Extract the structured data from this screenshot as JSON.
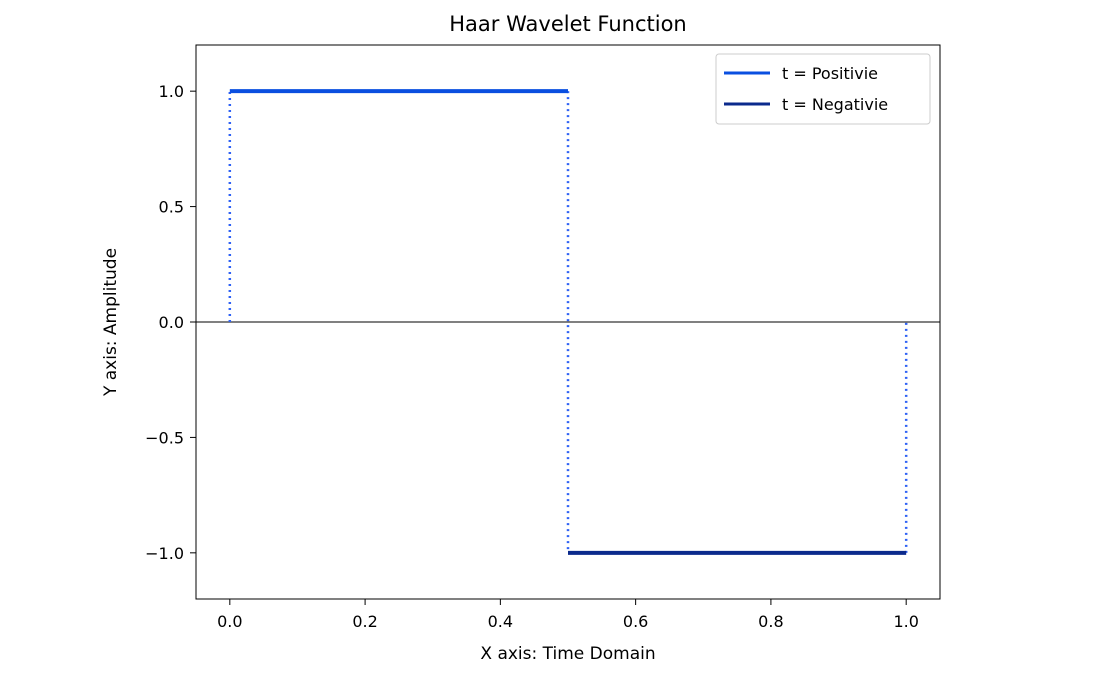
{
  "chart_data": {
    "type": "line",
    "title": "Haar Wavelet Function",
    "xlabel": "X axis: Time Domain",
    "ylabel": "Y axis: Amplitude",
    "xlim": [
      -0.05,
      1.05
    ],
    "ylim": [
      -1.2,
      1.2
    ],
    "x_ticks": [
      0.0,
      0.2,
      0.4,
      0.6,
      0.8,
      1.0
    ],
    "x_tick_labels": [
      "0.0",
      "0.2",
      "0.4",
      "0.6",
      "0.8",
      "1.0"
    ],
    "y_ticks": [
      1.0,
      0.5,
      0.0,
      -0.5,
      -1.0
    ],
    "y_tick_labels": [
      "1.0",
      "0.5",
      "0.0",
      "−0.5",
      "−1.0"
    ],
    "grid": false,
    "legend_position": "top-right",
    "zero_line": true,
    "series": [
      {
        "name": "t = Positivie",
        "color": "#0a4fe0",
        "x": [
          0.0,
          0.5
        ],
        "y": [
          1.0,
          1.0
        ]
      },
      {
        "name": "t = Negativie",
        "color": "#0b2a8c",
        "x": [
          0.5,
          1.0
        ],
        "y": [
          -1.0,
          -1.0
        ]
      }
    ],
    "vertical_dotted_lines": {
      "color": "#2f62f5",
      "segments": [
        {
          "x": 0.0,
          "y": [
            0.0,
            1.0
          ]
        },
        {
          "x": 0.5,
          "y": [
            1.0,
            -1.0
          ]
        },
        {
          "x": 1.0,
          "y": [
            -1.0,
            0.0
          ]
        }
      ]
    }
  }
}
